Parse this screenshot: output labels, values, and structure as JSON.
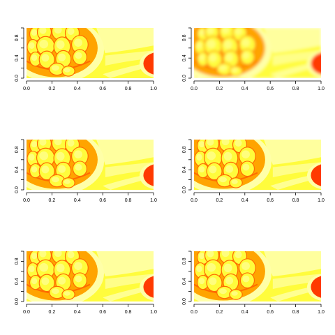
{
  "chart_data": [
    {
      "type": "heatmap",
      "colormap": "heat",
      "variant": "original",
      "xlim": [
        0,
        1
      ],
      "ylim": [
        0,
        1
      ],
      "xticks": [
        "0.0",
        "0.2",
        "0.4",
        "0.6",
        "0.8",
        "1.0"
      ],
      "yticks": [
        "0.0",
        "0.4",
        "0.8"
      ]
    },
    {
      "type": "heatmap",
      "colormap": "heat",
      "variant": "blurred",
      "xlim": [
        0,
        1
      ],
      "ylim": [
        0,
        1
      ],
      "xticks": [
        "0.0",
        "0.2",
        "0.4",
        "0.6",
        "0.8",
        "1.0"
      ],
      "yticks": [
        "0.0",
        "0.4",
        "0.8"
      ]
    },
    {
      "type": "heatmap",
      "colormap": "heat",
      "variant": "original",
      "xlim": [
        0,
        1
      ],
      "ylim": [
        0,
        1
      ],
      "xticks": [
        "0.0",
        "0.2",
        "0.4",
        "0.6",
        "0.8",
        "1.0"
      ],
      "yticks": [
        "0.0",
        "0.4",
        "0.8"
      ]
    },
    {
      "type": "heatmap",
      "colormap": "heat",
      "variant": "original",
      "xlim": [
        0,
        1
      ],
      "ylim": [
        0,
        1
      ],
      "xticks": [
        "0.0",
        "0.2",
        "0.4",
        "0.6",
        "0.8",
        "1.0"
      ],
      "yticks": [
        "0.0",
        "0.4",
        "0.8"
      ]
    },
    {
      "type": "heatmap",
      "colormap": "heat",
      "variant": "original",
      "xlim": [
        0,
        1
      ],
      "ylim": [
        0,
        1
      ],
      "xticks": [
        "0.0",
        "0.2",
        "0.4",
        "0.6",
        "0.8",
        "1.0"
      ],
      "yticks": [
        "0.0",
        "0.4",
        "0.8"
      ]
    },
    {
      "type": "heatmap",
      "colormap": "heat",
      "variant": "original",
      "xlim": [
        0,
        1
      ],
      "ylim": [
        0,
        1
      ],
      "xticks": [
        "0.0",
        "0.2",
        "0.4",
        "0.6",
        "0.8",
        "1.0"
      ],
      "yticks": [
        "0.0",
        "0.4",
        "0.8"
      ]
    }
  ],
  "colors": {
    "background": "#fffc3c",
    "light": "#ffffa8",
    "orange": "#ffa400",
    "deep_orange": "#ff6a00",
    "red": "#ff3a00",
    "axis": "#000000"
  }
}
